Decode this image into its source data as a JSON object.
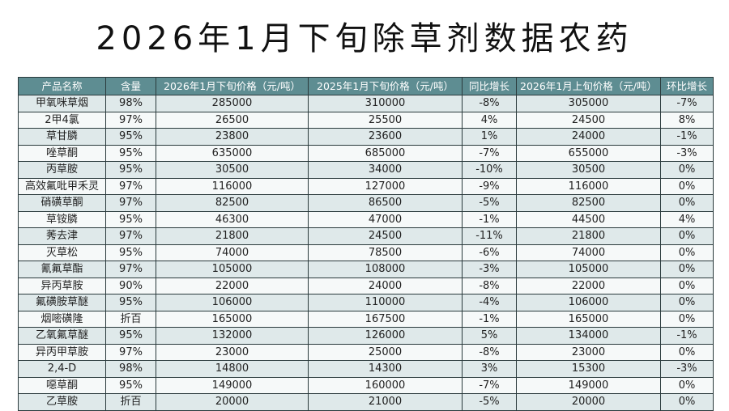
{
  "header": {
    "title": "2026年1月下旬除草剂数据农药"
  },
  "table": {
    "headers": [
      "产品名称",
      "含量",
      "2026年1月下旬价格（元/吨）",
      "2025年1月下旬价格（元/吨）",
      "同比增长",
      "2026年1月上旬价格（元/吨）",
      "环比增长"
    ],
    "rows": [
      [
        "甲氧咪草烟",
        "98%",
        "285000",
        "310000",
        "-8%",
        "305000",
        "-7%"
      ],
      [
        "2甲4氯",
        "97%",
        "26500",
        "25500",
        "4%",
        "24500",
        "8%"
      ],
      [
        "草甘膦",
        "95%",
        "23800",
        "23600",
        "1%",
        "24000",
        "-1%"
      ],
      [
        "唑草酮",
        "95%",
        "635000",
        "685000",
        "-7%",
        "655000",
        "-3%"
      ],
      [
        "丙草胺",
        "95%",
        "30500",
        "34000",
        "-10%",
        "30500",
        "0%"
      ],
      [
        "高效氟吡甲禾灵",
        "97%",
        "116000",
        "127000",
        "-9%",
        "116000",
        "0%"
      ],
      [
        "硝磺草酮",
        "97%",
        "82500",
        "86500",
        "-5%",
        "82500",
        "0%"
      ],
      [
        "草铵膦",
        "95%",
        "46300",
        "47000",
        "-1%",
        "44500",
        "4%"
      ],
      [
        "莠去津",
        "97%",
        "21800",
        "24500",
        "-11%",
        "21800",
        "0%"
      ],
      [
        "灭草松",
        "95%",
        "74000",
        "78500",
        "-6%",
        "74000",
        "0%"
      ],
      [
        "氰氟草酯",
        "97%",
        "105000",
        "108000",
        "-3%",
        "105000",
        "0%"
      ],
      [
        "异丙草胺",
        "90%",
        "22000",
        "24000",
        "-8%",
        "22000",
        "0%"
      ],
      [
        "氟磺胺草醚",
        "95%",
        "106000",
        "110000",
        "-4%",
        "106000",
        "0%"
      ],
      [
        "烟嘧磺隆",
        "折百",
        "165000",
        "167500",
        "-1%",
        "165000",
        "0%"
      ],
      [
        "乙氧氟草醚",
        "95%",
        "132000",
        "126000",
        "5%",
        "134000",
        "-1%"
      ],
      [
        "异丙甲草胺",
        "97%",
        "23000",
        "25000",
        "-8%",
        "23000",
        "0%"
      ],
      [
        "2,4-D",
        "98%",
        "14800",
        "14300",
        "3%",
        "15300",
        "-3%"
      ],
      [
        "噁草酮",
        "95%",
        "149000",
        "160000",
        "-7%",
        "149000",
        "0%"
      ],
      [
        "乙草胺",
        "折百",
        "20000",
        "21000",
        "-5%",
        "20000",
        "0%"
      ]
    ]
  }
}
